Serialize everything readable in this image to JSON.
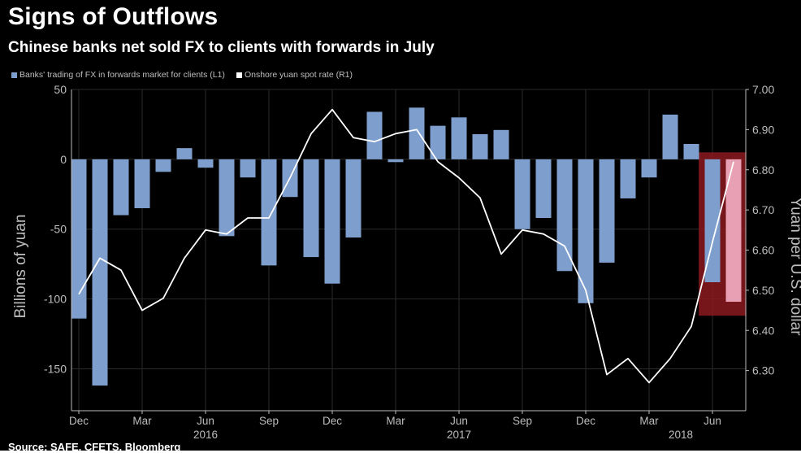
{
  "header": {
    "title": "Signs of Outflows",
    "subtitle": "Chinese banks net sold FX to clients with forwards in July",
    "source": "Source: SAFE, CFETS, Bloomberg"
  },
  "colors": {
    "background": "#000000",
    "bar": "#7e9fcd",
    "bar_highlight": "#e8a0b4",
    "line": "#ffffff",
    "highlight_box": "#8b1a1f",
    "grid": "#2a2a2a",
    "axis_text": "#bdbdbd"
  },
  "chart_data": {
    "type": "bar",
    "legend": [
      {
        "label": "Banks' trading of FX in forwards market for clients (L1)",
        "color": "#7e9fcd"
      },
      {
        "label": "Onshore yuan spot rate (R1)",
        "color": "#ffffff"
      }
    ],
    "legend_position": "top-left",
    "grid": true,
    "ylabel_left": "Billions of yuan",
    "ylabel_right": "Yuan per U.S. dollar",
    "ylim_left": [
      -180,
      50
    ],
    "ylim_right": [
      6.2,
      7.0
    ],
    "yticks_left": [
      50,
      0,
      -50,
      -100,
      -150
    ],
    "ytick_labels_left": [
      "50",
      "0",
      "-50",
      "-100",
      "-150"
    ],
    "yticks_right": [
      7.0,
      6.9,
      6.8,
      6.7,
      6.6,
      6.5,
      6.4,
      6.3
    ],
    "ytick_labels_right": [
      "7.00",
      "6.90",
      "6.80",
      "6.70",
      "6.60",
      "6.50",
      "6.40",
      "6.30"
    ],
    "x_tick_labels": [
      {
        "label": "Dec",
        "index": 0
      },
      {
        "label": "Mar",
        "index": 3
      },
      {
        "label": "Jun",
        "index": 6
      },
      {
        "label": "Sep",
        "index": 9
      },
      {
        "label": "Dec",
        "index": 12
      },
      {
        "label": "Mar",
        "index": 15
      },
      {
        "label": "Jun",
        "index": 18
      },
      {
        "label": "Sep",
        "index": 21
      },
      {
        "label": "Dec",
        "index": 24
      },
      {
        "label": "Mar",
        "index": 27
      },
      {
        "label": "Jun",
        "index": 30
      }
    ],
    "year_labels": [
      {
        "label": "2016",
        "index": 6
      },
      {
        "label": "2017",
        "index": 18
      },
      {
        "label": "2018",
        "index": 28.5
      }
    ],
    "categories": [
      "2015-12",
      "2016-01",
      "2016-02",
      "2016-03",
      "2016-04",
      "2016-05",
      "2016-06",
      "2016-07",
      "2016-08",
      "2016-09",
      "2016-10",
      "2016-11",
      "2016-12",
      "2017-01",
      "2017-02",
      "2017-03",
      "2017-04",
      "2017-05",
      "2017-06",
      "2017-07",
      "2017-08",
      "2017-09",
      "2017-10",
      "2017-11",
      "2017-12",
      "2018-01",
      "2018-02",
      "2018-03",
      "2018-04",
      "2018-05",
      "2018-06",
      "2018-07"
    ],
    "series": [
      {
        "name": "Banks' trading of FX in forwards market for clients (L1)",
        "type": "bar",
        "axis": "left",
        "values": [
          -114,
          -162,
          -40,
          -35,
          -9,
          8,
          -6,
          -55,
          -13,
          -76,
          -27,
          -70,
          -89,
          -56,
          34,
          -2,
          37,
          24,
          30,
          18,
          21,
          -50,
          -42,
          -80,
          -103,
          -74,
          -28,
          -13,
          32,
          11,
          -88,
          -102
        ]
      },
      {
        "name": "Onshore yuan spot rate (R1)",
        "type": "line",
        "axis": "right",
        "values": [
          6.49,
          6.58,
          6.55,
          6.45,
          6.48,
          6.58,
          6.65,
          6.64,
          6.68,
          6.68,
          6.78,
          6.89,
          6.95,
          6.88,
          6.87,
          6.89,
          6.9,
          6.82,
          6.78,
          6.73,
          6.59,
          6.65,
          6.64,
          6.61,
          6.5,
          6.29,
          6.33,
          6.27,
          6.33,
          6.41,
          6.62,
          6.82
        ]
      }
    ],
    "highlight": {
      "start_index": 31,
      "end_index": 31
    }
  }
}
